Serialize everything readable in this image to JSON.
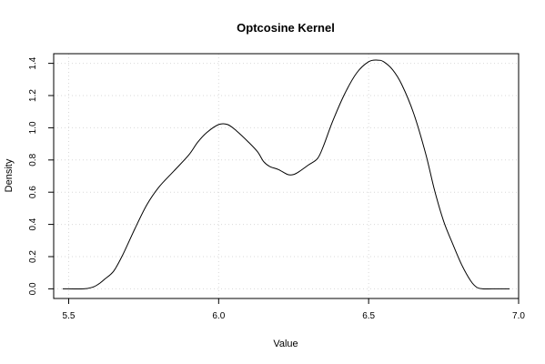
{
  "chart_data": {
    "type": "line",
    "title": "Optcosine Kernel",
    "xlabel": "Value",
    "ylabel": "Density",
    "xlim": [
      5.45,
      7.0
    ],
    "ylim": [
      -0.06,
      1.46
    ],
    "xticks": [
      {
        "value": 5.5,
        "label": "5.5"
      },
      {
        "value": 6.0,
        "label": "6.0"
      },
      {
        "value": 6.5,
        "label": "6.5"
      },
      {
        "value": 7.0,
        "label": "7.0"
      }
    ],
    "yticks": [
      {
        "value": 0.0,
        "label": "0.0"
      },
      {
        "value": 0.2,
        "label": "0.2"
      },
      {
        "value": 0.4,
        "label": "0.4"
      },
      {
        "value": 0.6,
        "label": "0.6"
      },
      {
        "value": 0.8,
        "label": "0.8"
      },
      {
        "value": 1.0,
        "label": "1.0"
      },
      {
        "value": 1.2,
        "label": "1.2"
      },
      {
        "value": 1.4,
        "label": "1.4"
      }
    ],
    "grid": true,
    "line_color": "#000000",
    "grid_color": "#d9d9d9",
    "series": [
      {
        "x": [
          5.48,
          5.55,
          5.58,
          5.6,
          5.62,
          5.65,
          5.68,
          5.72,
          5.76,
          5.8,
          5.85,
          5.9,
          5.93,
          5.96,
          6.0,
          6.03,
          6.06,
          6.1,
          6.13,
          6.15,
          6.17,
          6.2,
          6.23,
          6.25,
          6.27,
          6.3,
          6.33,
          6.35,
          6.38,
          6.42,
          6.46,
          6.5,
          6.53,
          6.55,
          6.58,
          6.61,
          6.65,
          6.69,
          6.72,
          6.75,
          6.78,
          6.81,
          6.84,
          6.86,
          6.88,
          6.91,
          6.94,
          6.97
        ],
        "y": [
          0.0,
          0.0,
          0.01,
          0.03,
          0.06,
          0.11,
          0.21,
          0.37,
          0.52,
          0.63,
          0.73,
          0.83,
          0.91,
          0.97,
          1.02,
          1.02,
          0.98,
          0.91,
          0.85,
          0.79,
          0.76,
          0.74,
          0.71,
          0.71,
          0.73,
          0.77,
          0.81,
          0.89,
          1.04,
          1.21,
          1.34,
          1.41,
          1.42,
          1.41,
          1.36,
          1.27,
          1.09,
          0.84,
          0.61,
          0.42,
          0.28,
          0.15,
          0.05,
          0.01,
          0.0,
          0.0,
          0.0,
          0.0
        ]
      }
    ]
  }
}
